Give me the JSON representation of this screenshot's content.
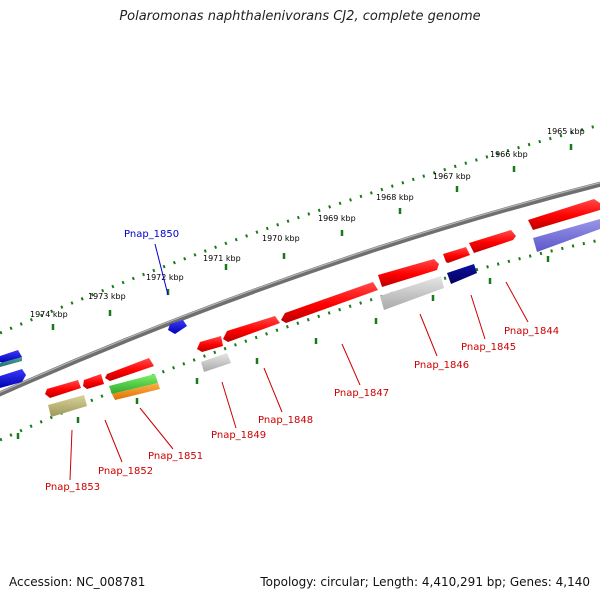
{
  "title": "Polaromonas naphthalenivorans CJ2, complete genome",
  "footer": {
    "accession": "Accession: NC_008781",
    "summary": "Topology: circular; Length: 4,410,291 bp; Genes: 4,140"
  },
  "scale_labels": [
    "1965 kbp",
    "1966 kbp",
    "1967 kbp",
    "1968 kbp",
    "1969 kbp",
    "1970 kbp",
    "1971 kbp",
    "1972 kbp",
    "1973 kbp",
    "1974 kbp"
  ],
  "genes": [
    {
      "name": "Pnap_1844",
      "color": "#cc0000"
    },
    {
      "name": "Pnap_1845",
      "color": "#cc0000"
    },
    {
      "name": "Pnap_1846",
      "color": "#cc0000"
    },
    {
      "name": "Pnap_1847",
      "color": "#cc0000"
    },
    {
      "name": "Pnap_1848",
      "color": "#cc0000"
    },
    {
      "name": "Pnap_1849",
      "color": "#cc0000"
    },
    {
      "name": "Pnap_1850",
      "color": "#0000cc"
    },
    {
      "name": "Pnap_1851",
      "color": "#cc0000"
    },
    {
      "name": "Pnap_1852",
      "color": "#cc0000"
    },
    {
      "name": "Pnap_1853",
      "color": "#cc0000"
    }
  ],
  "colors": {
    "forward_gene": "#ff0000",
    "reverse_gene": "#0000ff",
    "backbone": "#808080",
    "scale_ticks": "#1a7a1a",
    "gene_label_red": "#cc0000",
    "gene_label_blue": "#0000cc"
  }
}
